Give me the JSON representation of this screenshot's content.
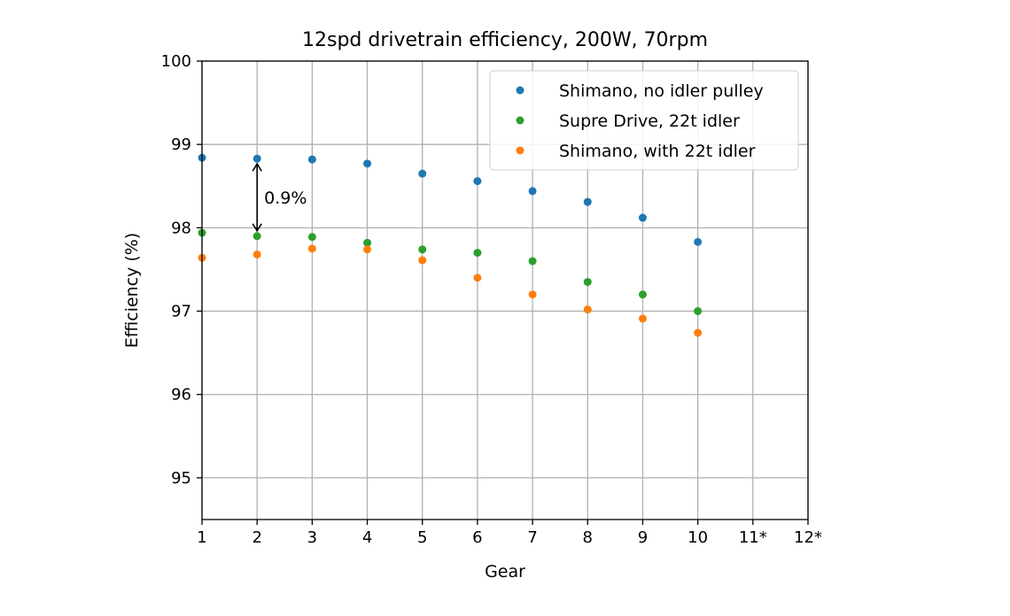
{
  "chart_data": {
    "type": "scatter",
    "title": "12spd drivetrain efficiency, 200W, 70rpm",
    "xlabel": "Gear",
    "ylabel": "Efficiency (%)",
    "x_ticks": [
      "1",
      "2",
      "3",
      "4",
      "5",
      "6",
      "7",
      "8",
      "9",
      "10",
      "11*",
      "12*"
    ],
    "y_ticks": [
      "95",
      "96",
      "97",
      "98",
      "99",
      "100"
    ],
    "xlim": [
      1,
      12
    ],
    "ylim": [
      94.5,
      100
    ],
    "grid": true,
    "legend_position": "top-right",
    "series": [
      {
        "name": "Shimano, no idler pulley",
        "color": "#1f77b4",
        "x": [
          1,
          2,
          3,
          4,
          5,
          6,
          7,
          8,
          9,
          10
        ],
        "y": [
          98.84,
          98.83,
          98.82,
          98.77,
          98.65,
          98.56,
          98.44,
          98.31,
          98.12,
          97.83
        ]
      },
      {
        "name": "Supre Drive, 22t idler",
        "color": "#2ca02c",
        "x": [
          1,
          2,
          3,
          4,
          5,
          6,
          7,
          8,
          9,
          10
        ],
        "y": [
          97.94,
          97.9,
          97.89,
          97.82,
          97.74,
          97.7,
          97.6,
          97.35,
          97.2,
          97.0
        ]
      },
      {
        "name": "Shimano, with 22t idler",
        "color": "#ff7f0e",
        "x": [
          1,
          2,
          3,
          4,
          5,
          6,
          7,
          8,
          9,
          10
        ],
        "y": [
          97.64,
          97.68,
          97.75,
          97.74,
          97.61,
          97.4,
          97.2,
          97.02,
          96.91,
          96.74
        ]
      }
    ],
    "annotation": {
      "text": "0.9%",
      "x": 2,
      "y_from": 98.83,
      "y_to": 97.9
    }
  }
}
